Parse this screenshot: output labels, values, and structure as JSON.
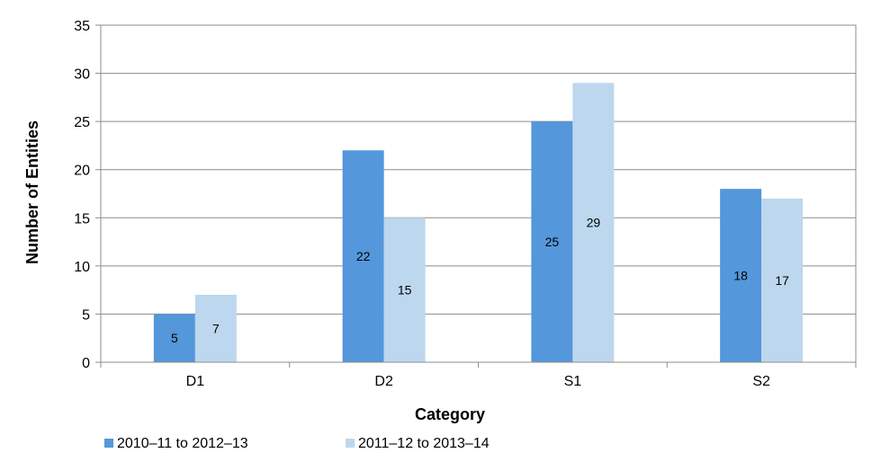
{
  "chart_data": {
    "type": "bar",
    "title": "",
    "xlabel": "Category",
    "ylabel": "Number of Entities",
    "categories": [
      "D1",
      "D2",
      "S1",
      "S2"
    ],
    "series": [
      {
        "name": "2010–11 to 2012–13",
        "values": [
          5,
          22,
          25,
          18
        ],
        "color": "#5497DB"
      },
      {
        "name": "2011–12 to 2013–14",
        "values": [
          7,
          15,
          29,
          17
        ],
        "color": "#BDD7EE"
      }
    ],
    "ylim": [
      0,
      35
    ],
    "yticks": [
      0,
      5,
      10,
      15,
      20,
      25,
      30,
      35
    ],
    "grid": true,
    "legend_position": "bottom-left",
    "data_labels": true
  }
}
